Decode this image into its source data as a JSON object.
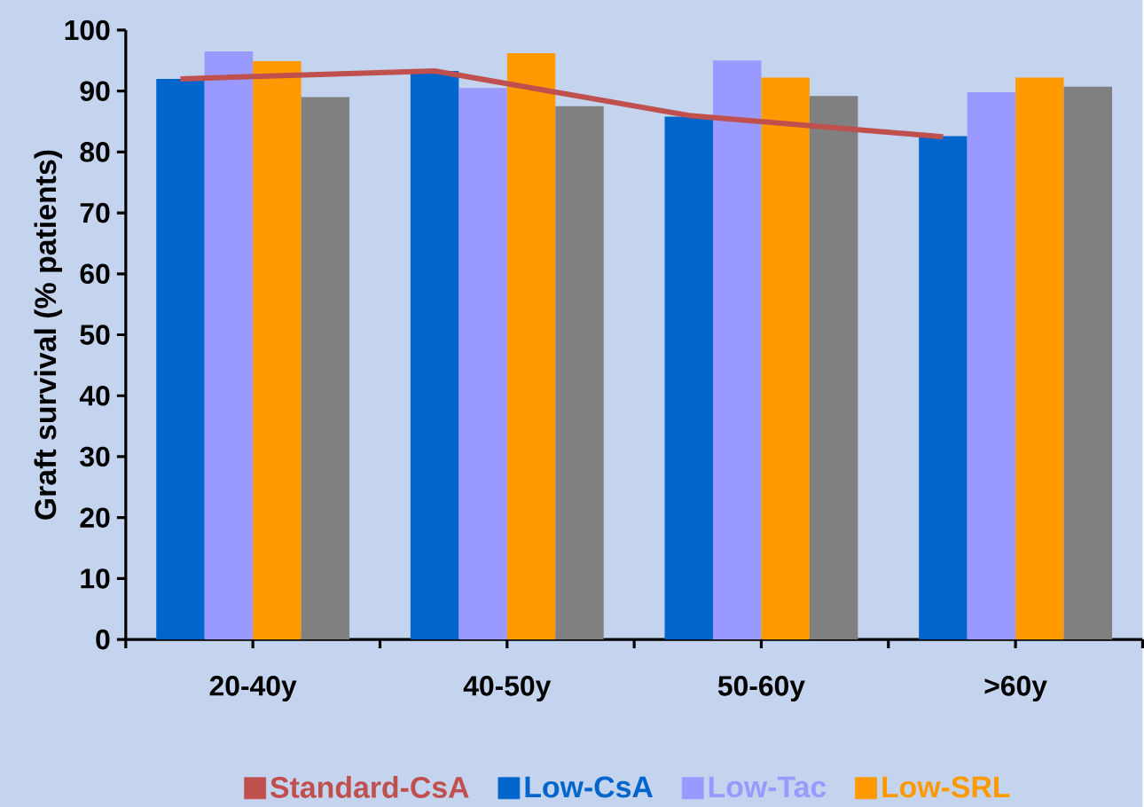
{
  "chart_data": {
    "type": "bar",
    "ylabel": "Graft survival (% patients)",
    "categories": [
      "20-40y",
      "40-50y",
      "50-60y",
      ">60y"
    ],
    "series": [
      {
        "name": "Standard-CsA",
        "type": "line",
        "color": "#c0504d",
        "values": [
          92,
          93.3,
          86,
          82.5
        ]
      },
      {
        "name": "Low-CsA",
        "color": "#0066cc",
        "values": [
          92,
          93.3,
          85.8,
          82.6
        ]
      },
      {
        "name": "Low-Tac",
        "color": "#9999ff",
        "values": [
          96.5,
          90.5,
          95,
          89.8
        ]
      },
      {
        "name": "Low-SRL",
        "color": "#ff9900",
        "values": [
          94.9,
          96.2,
          92.2,
          92.2
        ]
      },
      {
        "color": "#808080",
        "values": [
          89,
          87.5,
          89.2,
          90.7
        ]
      }
    ],
    "ylim": [
      0,
      100
    ],
    "yticks": [
      0,
      10,
      20,
      30,
      40,
      50,
      60,
      70,
      80,
      90,
      100
    ],
    "grid": false,
    "legend": "bottom",
    "marker": "none"
  }
}
